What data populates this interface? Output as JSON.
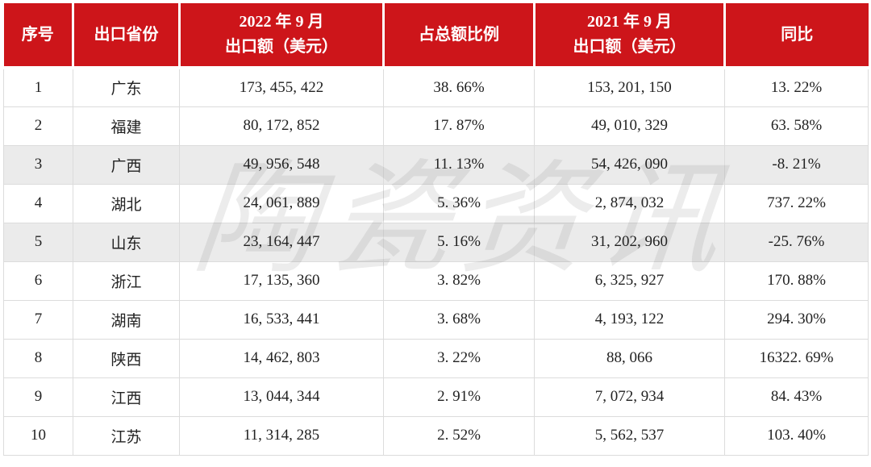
{
  "watermark": {
    "text": "陶瓷资讯"
  },
  "colors": {
    "header_bg": "#CD151A",
    "header_text": "#FFFFFF",
    "row_alt_bg": "#EBEBEB",
    "border": "#DCDCDC",
    "body_text": "#222222",
    "page_bg": "#FFFFFF"
  },
  "table": {
    "columns": [
      {
        "key": "index",
        "line1": "序号",
        "line2": ""
      },
      {
        "key": "province",
        "line1": "出口省份",
        "line2": ""
      },
      {
        "key": "export_2022",
        "line1": "2022 年 9 月",
        "line2": "出口额（美元）"
      },
      {
        "key": "share",
        "line1": "占总额比例",
        "line2": ""
      },
      {
        "key": "export_2021",
        "line1": "2021 年 9 月",
        "line2": "出口额（美元）"
      },
      {
        "key": "yoy",
        "line1": "同比",
        "line2": ""
      }
    ],
    "rows": [
      {
        "index": "1",
        "province": "广东",
        "export_2022": "173, 455, 422",
        "share": "38. 66%",
        "export_2021": "153, 201, 150",
        "yoy": "13. 22%",
        "shaded": false
      },
      {
        "index": "2",
        "province": "福建",
        "export_2022": "80, 172, 852",
        "share": "17. 87%",
        "export_2021": "49, 010, 329",
        "yoy": "63. 58%",
        "shaded": false
      },
      {
        "index": "3",
        "province": "广西",
        "export_2022": "49, 956, 548",
        "share": "11. 13%",
        "export_2021": "54, 426, 090",
        "yoy": "-8. 21%",
        "shaded": true
      },
      {
        "index": "4",
        "province": "湖北",
        "export_2022": "24, 061, 889",
        "share": "5. 36%",
        "export_2021": "2, 874, 032",
        "yoy": "737. 22%",
        "shaded": false
      },
      {
        "index": "5",
        "province": "山东",
        "export_2022": "23, 164, 447",
        "share": "5. 16%",
        "export_2021": "31, 202, 960",
        "yoy": "-25. 76%",
        "shaded": true
      },
      {
        "index": "6",
        "province": "浙江",
        "export_2022": "17, 135, 360",
        "share": "3. 82%",
        "export_2021": "6, 325, 927",
        "yoy": "170. 88%",
        "shaded": false
      },
      {
        "index": "7",
        "province": "湖南",
        "export_2022": "16, 533, 441",
        "share": "3. 68%",
        "export_2021": "4, 193, 122",
        "yoy": "294. 30%",
        "shaded": false
      },
      {
        "index": "8",
        "province": "陕西",
        "export_2022": "14, 462, 803",
        "share": "3. 22%",
        "export_2021": "88, 066",
        "yoy": "16322. 69%",
        "shaded": false
      },
      {
        "index": "9",
        "province": "江西",
        "export_2022": "13, 044, 344",
        "share": "2. 91%",
        "export_2021": "7, 072, 934",
        "yoy": "84. 43%",
        "shaded": false
      },
      {
        "index": "10",
        "province": "江苏",
        "export_2022": "11, 314, 285",
        "share": "2. 52%",
        "export_2021": "5, 562, 537",
        "yoy": "103. 40%",
        "shaded": false
      }
    ]
  },
  "chart_data": {
    "type": "table",
    "title": "",
    "columns": [
      "序号",
      "出口省份",
      "2022年9月出口额（美元）",
      "占总额比例",
      "2021年9月出口额（美元）",
      "同比"
    ],
    "rows": [
      [
        1,
        "广东",
        173455422,
        "38.66%",
        153201150,
        "13.22%"
      ],
      [
        2,
        "福建",
        80172852,
        "17.87%",
        49010329,
        "63.58%"
      ],
      [
        3,
        "广西",
        49956548,
        "11.13%",
        54426090,
        "-8.21%"
      ],
      [
        4,
        "湖北",
        24061889,
        "5.36%",
        2874032,
        "737.22%"
      ],
      [
        5,
        "山东",
        23164447,
        "5.16%",
        31202960,
        "-25.76%"
      ],
      [
        6,
        "浙江",
        17135360,
        "3.82%",
        6325927,
        "170.88%"
      ],
      [
        7,
        "湖南",
        16533441,
        "3.68%",
        4193122,
        "294.30%"
      ],
      [
        8,
        "陕西",
        14462803,
        "3.22%",
        88066,
        "16322.69%"
      ],
      [
        9,
        "江西",
        13044344,
        "2.91%",
        7072934,
        "84.43%"
      ],
      [
        10,
        "江苏",
        11314285,
        "2.52%",
        5562537,
        "103.40%"
      ]
    ]
  }
}
